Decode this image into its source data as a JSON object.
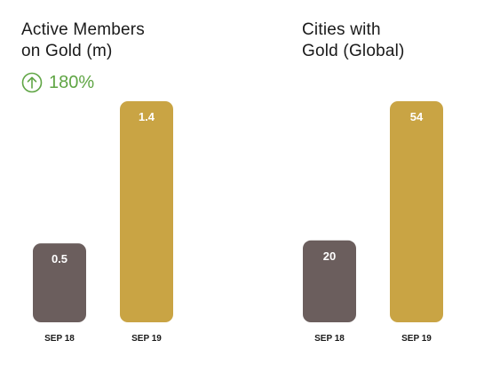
{
  "colors": {
    "sep18": "#6b5e5d",
    "sep19": "#c9a444",
    "growth": "#5fa544",
    "text": "#1a1a1a",
    "value_label": "#ffffff"
  },
  "growth": {
    "icon": "arrow-up-circle-icon",
    "text": "180%"
  },
  "chart_data": [
    {
      "type": "bar",
      "title": "Active Members\non Gold (m)",
      "categories": [
        "SEP 18",
        "SEP 19"
      ],
      "values": [
        0.5,
        1.4
      ],
      "value_labels": [
        "0.5",
        "1.4"
      ],
      "ylim": [
        0,
        1.4
      ],
      "grid": false
    },
    {
      "type": "bar",
      "title": "Cities with\nGold (Global)",
      "categories": [
        "SEP 18",
        "SEP 19"
      ],
      "values": [
        20,
        54
      ],
      "value_labels": [
        "20",
        "54"
      ],
      "ylim": [
        0,
        54
      ],
      "grid": false
    }
  ]
}
